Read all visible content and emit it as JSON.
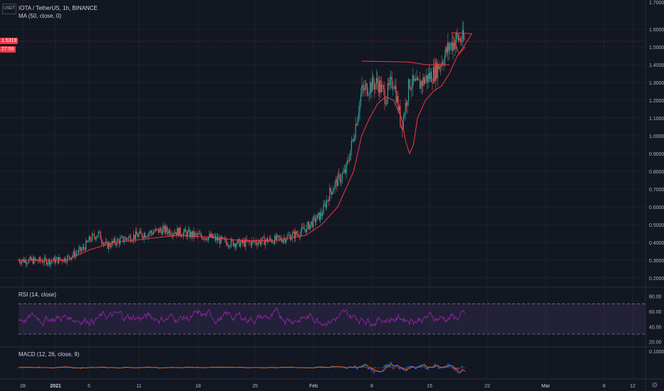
{
  "header": {
    "symbol_badge": "USDT",
    "title": "IOTA / TetherUS, 1h, BINANCE",
    "indicator_ma": "MA (50, close, 0)",
    "indicator_rsi": "RSI (14, close)",
    "indicator_macd": "MACD (12, 26, close, 9)",
    "price_tag_1": "1.5319",
    "price_tag_2": "27:59",
    "top_cut_label": "1.7000"
  },
  "colors": {
    "background": "#131722",
    "grid": "#1e222d",
    "text": "#b2b5be",
    "up": "#26a69a",
    "down": "#ef5350",
    "drawing": "#f23645",
    "ma": "#f23645",
    "rsi": "#9c27b0",
    "rsi_band": "rgba(126,87,194,0.15)",
    "macd": "#2962ff",
    "signal": "#ff6d00"
  },
  "chart_data": [
    {
      "type": "candlestick",
      "title": "IOTA / TetherUS, 1h, BINANCE",
      "x_ticks": [
        "28",
        "2021",
        "5",
        "11",
        "18",
        "25",
        "Feb",
        "8",
        "15",
        "22",
        "Mar",
        "8",
        "12"
      ],
      "y_ticks": [
        "1.6000",
        "1.5000",
        "1.4000",
        "1.3000",
        "1.2000",
        "1.1000",
        "1.0000",
        "0.9000",
        "0.8000",
        "0.7000",
        "0.6000",
        "0.5000",
        "0.4000",
        "0.3000",
        "0.2000"
      ],
      "ylim": [
        0.2,
        1.7
      ],
      "last_price": 1.5319,
      "price_path": [
        [
          0,
          0.3
        ],
        [
          4,
          0.295
        ],
        [
          6,
          0.31
        ],
        [
          8,
          0.36
        ],
        [
          9,
          0.42
        ],
        [
          10,
          0.45
        ],
        [
          11,
          0.38
        ],
        [
          12,
          0.4
        ],
        [
          14,
          0.43
        ],
        [
          16,
          0.45
        ],
        [
          18,
          0.47
        ],
        [
          20,
          0.46
        ],
        [
          22,
          0.44
        ],
        [
          24,
          0.43
        ],
        [
          26,
          0.4
        ],
        [
          28,
          0.395
        ],
        [
          31,
          0.41
        ],
        [
          33,
          0.42
        ],
        [
          35,
          0.45
        ],
        [
          36,
          0.48
        ],
        [
          37,
          0.52
        ],
        [
          38,
          0.56
        ],
        [
          39,
          0.68
        ],
        [
          40,
          0.75
        ],
        [
          41,
          0.8
        ],
        [
          42,
          1.0
        ],
        [
          43,
          1.25
        ],
        [
          44,
          1.28
        ],
        [
          45,
          1.3
        ],
        [
          46,
          1.22
        ],
        [
          47,
          1.32
        ],
        [
          48,
          1.05
        ],
        [
          49,
          1.3
        ],
        [
          50,
          1.28
        ],
        [
          51,
          1.32
        ],
        [
          52,
          1.35
        ],
        [
          53,
          1.42
        ],
        [
          54,
          1.5
        ],
        [
          55,
          1.55
        ],
        [
          56,
          1.53
        ]
      ],
      "ma_path": [
        [
          0,
          0.3
        ],
        [
          6,
          0.3
        ],
        [
          9,
          0.36
        ],
        [
          12,
          0.4
        ],
        [
          16,
          0.42
        ],
        [
          20,
          0.44
        ],
        [
          24,
          0.43
        ],
        [
          28,
          0.41
        ],
        [
          32,
          0.41
        ],
        [
          36,
          0.44
        ],
        [
          38,
          0.5
        ],
        [
          40,
          0.6
        ],
        [
          42,
          0.8
        ],
        [
          43,
          1.0
        ],
        [
          44,
          1.1
        ],
        [
          45,
          1.18
        ],
        [
          46,
          1.22
        ],
        [
          47,
          1.2
        ],
        [
          48,
          1.1
        ],
        [
          48.5,
          0.97
        ],
        [
          49,
          0.9
        ],
        [
          49.5,
          0.95
        ],
        [
          50,
          1.1
        ],
        [
          51,
          1.2
        ],
        [
          52,
          1.25
        ],
        [
          53,
          1.28
        ],
        [
          54,
          1.35
        ],
        [
          55,
          1.45
        ],
        [
          56,
          1.5
        ]
      ],
      "drawings": [
        {
          "name": "neckline",
          "points": [
            [
              43,
              1.42
            ],
            [
              49,
              1.415
            ],
            [
              51,
              1.4
            ],
            [
              54,
              1.4
            ]
          ]
        },
        {
          "name": "triangle",
          "points": [
            [
              54.3,
              1.58
            ],
            [
              56.8,
              1.575
            ],
            [
              55.2,
              1.46
            ],
            [
              54.3,
              1.58
            ]
          ]
        }
      ]
    },
    {
      "type": "line",
      "title": "RSI (14, close)",
      "y_ticks": [
        "80.00",
        "60.00",
        "40.00",
        "20.00"
      ],
      "ylim": [
        15,
        90
      ],
      "bands": [
        30,
        70
      ],
      "series": [
        {
          "values_range": [
            28,
            88
          ]
        }
      ]
    },
    {
      "type": "line",
      "title": "MACD (12, 26, close, 9)",
      "y_ticks": [
        "0.1000"
      ],
      "series_colors": [
        "#2962ff",
        "#ff6d00"
      ]
    }
  ]
}
